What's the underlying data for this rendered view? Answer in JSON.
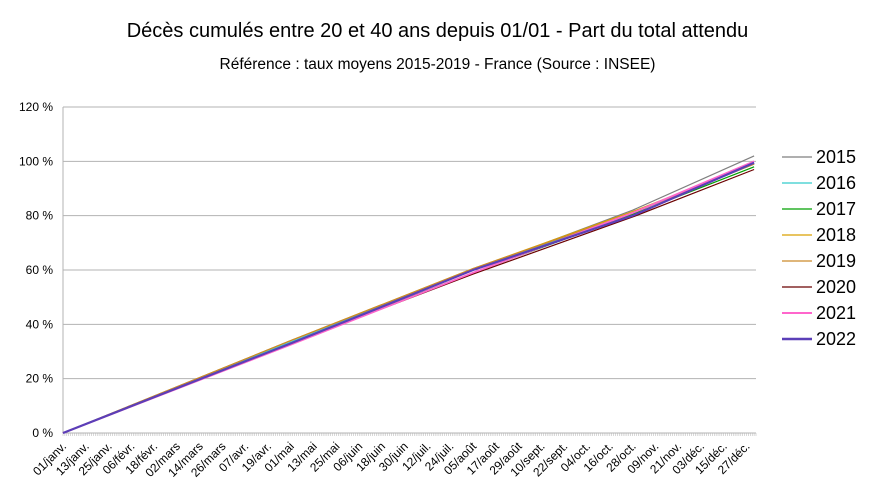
{
  "chart_data": {
    "type": "line",
    "title": "Décès cumulés entre 20 et 40 ans depuis 01/01 - Part du total attendu",
    "subtitle": "Référence : taux moyens 2015-2019 - France  (Source : INSEE)",
    "xlabel": "",
    "ylabel": "",
    "ylim": [
      0,
      120
    ],
    "y_ticks": [
      "0 %",
      "20 %",
      "40 %",
      "60 %",
      "80 %",
      "100 %",
      "120 %"
    ],
    "x_ticks": [
      "01/janv.",
      "13/janv.",
      "25/janv.",
      "06/févr.",
      "18/févr.",
      "02/mars",
      "14/mars",
      "26/mars",
      "07/avr.",
      "19/avr.",
      "01/mai",
      "13/mai",
      "25/mai",
      "06/juin",
      "18/juin",
      "30/juin",
      "12/juil.",
      "24/juil.",
      "05/août",
      "17/août",
      "29/août",
      "10/sept.",
      "22/sept.",
      "04/oct.",
      "16/oct.",
      "28/oct.",
      "09/nov.",
      "21/nov.",
      "03/déc.",
      "15/déc.",
      "27/déc."
    ],
    "grid": true,
    "legend_position": "right",
    "x_checkpoints": [
      "01/janv.",
      "01/mai",
      "05/août",
      "28/oct.",
      "31/déc."
    ],
    "series": [
      {
        "name": "2015",
        "color": "#7f7f7f",
        "values": [
          0,
          34,
          60,
          82,
          102
        ]
      },
      {
        "name": "2016",
        "color": "#33cccc",
        "values": [
          0,
          33.5,
          60,
          81,
          99
        ]
      },
      {
        "name": "2017",
        "color": "#00a000",
        "values": [
          0,
          33,
          59,
          80.5,
          98
        ]
      },
      {
        "name": "2018",
        "color": "#d9a000",
        "values": [
          0,
          34,
          60.5,
          81.5,
          99
        ]
      },
      {
        "name": "2019",
        "color": "#cc8a2a",
        "values": [
          0,
          34,
          60.5,
          81,
          99
        ]
      },
      {
        "name": "2020",
        "color": "#6b0000",
        "values": [
          0,
          33,
          58.5,
          79.5,
          97
        ]
      },
      {
        "name": "2021",
        "color": "#ff66cc",
        "values": [
          0,
          32.5,
          59,
          81,
          100
        ]
      },
      {
        "name": "2022",
        "color": "#5b3fb8",
        "values": [
          0,
          33,
          60,
          80,
          99.5
        ]
      }
    ]
  }
}
